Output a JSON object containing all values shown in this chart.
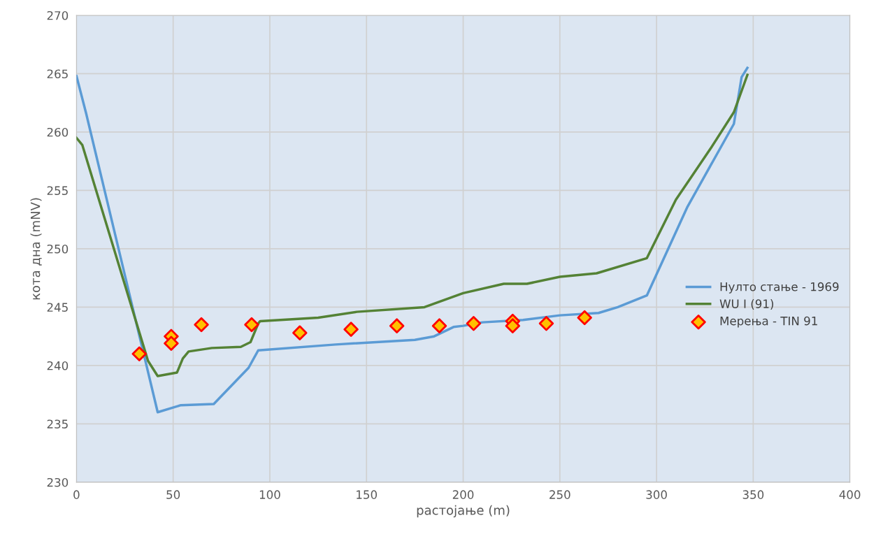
{
  "chart_data": {
    "type": "line",
    "xlabel": "растојање (m)",
    "ylabel": "кота дна (mNV)",
    "xlim": [
      0,
      400
    ],
    "xticks": [
      0,
      50,
      100,
      150,
      200,
      250,
      300,
      350,
      400
    ],
    "ylim": [
      230,
      270
    ],
    "yticks": [
      230,
      235,
      240,
      245,
      250,
      255,
      260,
      265,
      270
    ],
    "grid": true,
    "legend": "right",
    "series": [
      {
        "name": "Нулто стање - 1969",
        "color": "#5b9bd5",
        "x": [
          0,
          5,
          42,
          54,
          71,
          89,
          94,
          134,
          175,
          185,
          195,
          200,
          210,
          231,
          250,
          270,
          280,
          295,
          316,
          340,
          344,
          347
        ],
        "values": [
          264.8,
          261.6,
          236.0,
          236.6,
          236.7,
          239.8,
          241.3,
          241.8,
          242.2,
          242.5,
          243.3,
          243.4,
          243.7,
          243.9,
          244.3,
          244.5,
          245.0,
          246.0,
          253.6,
          260.7,
          264.7,
          265.5
        ]
      },
      {
        "name": "WU I (91)",
        "color": "#548235",
        "x": [
          0,
          3,
          37,
          42,
          52,
          55,
          58,
          70,
          85,
          90,
          94,
          95,
          125,
          145,
          180,
          200,
          221,
          233,
          250,
          269,
          295,
          310,
          328,
          340,
          347
        ],
        "values": [
          259.5,
          258.9,
          240.4,
          239.1,
          239.4,
          240.6,
          241.2,
          241.5,
          241.6,
          242.0,
          243.6,
          243.8,
          244.1,
          244.6,
          245.0,
          246.2,
          247.0,
          247.0,
          247.6,
          247.9,
          249.2,
          254.2,
          258.6,
          261.7,
          264.9
        ]
      },
      {
        "name": "Мерења - TIN 91",
        "type": "scatter",
        "color": "#ffc000",
        "marker": "diamond",
        "x": [
          32.5,
          49,
          49,
          64.6,
          90.6,
          115.5,
          142,
          165.7,
          187.7,
          205.4,
          225.6,
          225.6,
          243,
          262.8
        ],
        "values": [
          241.0,
          242.5,
          241.9,
          243.5,
          243.5,
          242.8,
          243.1,
          243.4,
          243.4,
          243.6,
          243.8,
          243.4,
          243.6,
          244.1
        ]
      }
    ]
  }
}
